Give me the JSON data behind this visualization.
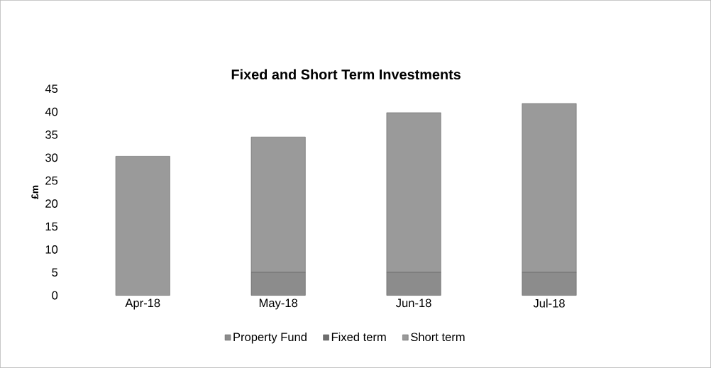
{
  "chart_data": {
    "type": "bar",
    "stacked": true,
    "title": "Fixed and Short Term Investments",
    "ylabel": "£m",
    "categories": [
      "Apr-18",
      "May-18",
      "Jun-18",
      "Jul-18"
    ],
    "series": [
      {
        "name": "Property Fund",
        "color": "#8c8c8c",
        "values": [
          0,
          5,
          5,
          5
        ]
      },
      {
        "name": "Fixed term",
        "color": "#6e6e6e",
        "values": [
          0,
          0,
          0,
          0
        ]
      },
      {
        "name": "Short term",
        "color": "#9a9a9a",
        "values": [
          30.3,
          29.5,
          34.8,
          36.8
        ]
      }
    ],
    "ylim": [
      0,
      45
    ],
    "yticks": [
      0,
      5,
      10,
      15,
      20,
      25,
      30,
      35,
      40,
      45
    ],
    "grid": false,
    "legend": "bottom"
  }
}
